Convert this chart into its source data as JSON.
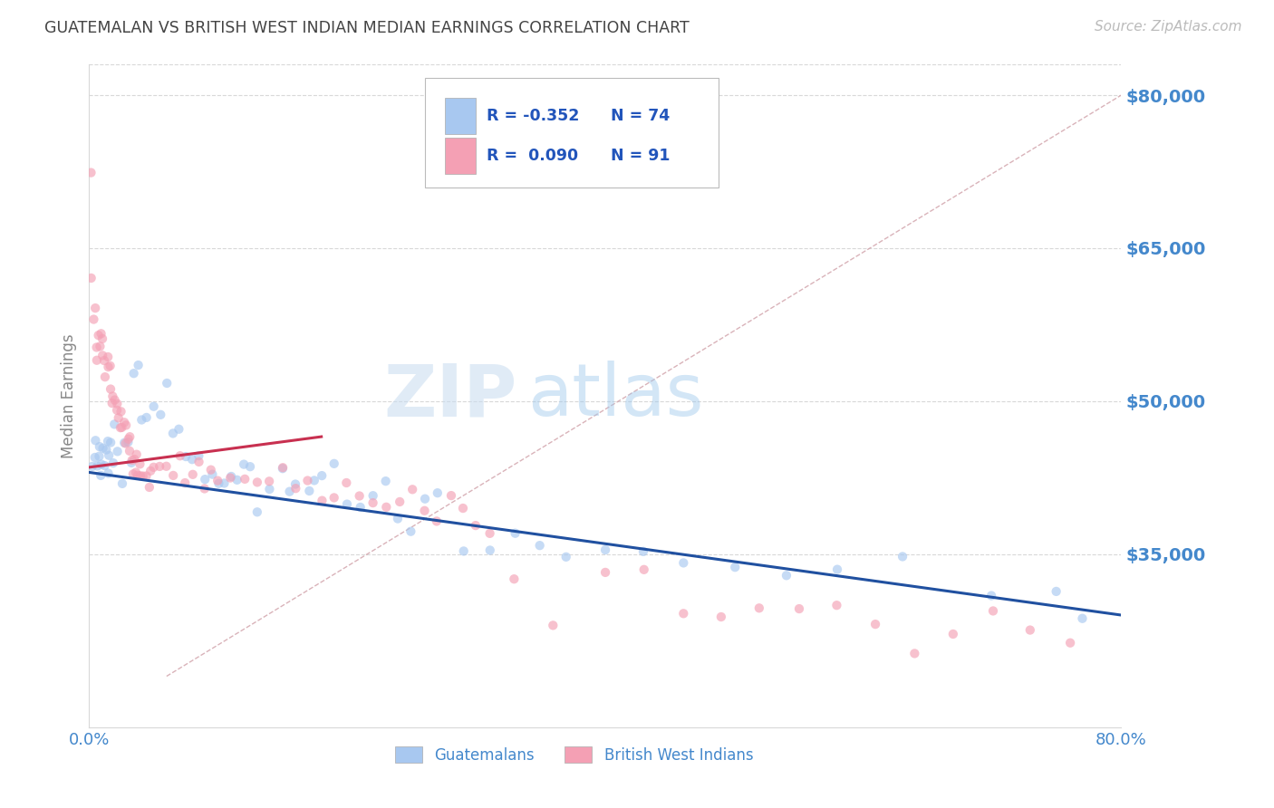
{
  "title": "GUATEMALAN VS BRITISH WEST INDIAN MEDIAN EARNINGS CORRELATION CHART",
  "source": "Source: ZipAtlas.com",
  "ylabel": "Median Earnings",
  "watermark_zip": "ZIP",
  "watermark_atlas": "atlas",
  "xlim": [
    0.0,
    0.8
  ],
  "ylim": [
    18000,
    83000
  ],
  "yticks": [
    35000,
    50000,
    65000,
    80000
  ],
  "ytick_labels": [
    "$35,000",
    "$50,000",
    "$65,000",
    "$80,000"
  ],
  "blue_color": "#A8C8F0",
  "pink_color": "#F4A0B4",
  "blue_line_color": "#2050A0",
  "pink_line_color": "#C83050",
  "dashed_line_color": "#D0A0A8",
  "title_color": "#444444",
  "ytick_color": "#4488CC",
  "background_color": "#FFFFFF",
  "grid_color": "#D8D8D8",
  "scatter_alpha": 0.65,
  "scatter_size": 55,
  "blue_scatter_x": [
    0.003,
    0.004,
    0.005,
    0.006,
    0.007,
    0.008,
    0.009,
    0.01,
    0.011,
    0.012,
    0.013,
    0.014,
    0.015,
    0.016,
    0.017,
    0.018,
    0.02,
    0.022,
    0.025,
    0.028,
    0.03,
    0.032,
    0.035,
    0.038,
    0.04,
    0.045,
    0.05,
    0.055,
    0.06,
    0.065,
    0.07,
    0.075,
    0.08,
    0.085,
    0.09,
    0.095,
    0.1,
    0.105,
    0.11,
    0.115,
    0.12,
    0.125,
    0.13,
    0.14,
    0.15,
    0.155,
    0.16,
    0.17,
    0.175,
    0.18,
    0.19,
    0.2,
    0.21,
    0.22,
    0.23,
    0.24,
    0.25,
    0.26,
    0.27,
    0.29,
    0.31,
    0.33,
    0.35,
    0.37,
    0.4,
    0.43,
    0.46,
    0.5,
    0.54,
    0.58,
    0.63,
    0.7,
    0.75,
    0.77
  ],
  "blue_scatter_y": [
    43000,
    44500,
    47000,
    44000,
    45000,
    46000,
    43500,
    44000,
    45500,
    43000,
    44500,
    46000,
    43000,
    44000,
    45000,
    43500,
    47000,
    44000,
    43000,
    45000,
    46500,
    44000,
    52000,
    53000,
    49000,
    48000,
    50500,
    49000,
    51000,
    47000,
    47000,
    44000,
    43500,
    44000,
    43500,
    43000,
    42000,
    43000,
    42500,
    42000,
    43000,
    42500,
    40000,
    42000,
    43000,
    42000,
    42500,
    41000,
    43000,
    42000,
    43000,
    41000,
    39500,
    40000,
    41000,
    39000,
    38000,
    39500,
    40000,
    36000,
    35500,
    36500,
    35000,
    35500,
    35000,
    34500,
    34000,
    34500,
    34000,
    34000,
    34000,
    32000,
    32500,
    29000
  ],
  "pink_scatter_x": [
    0.001,
    0.002,
    0.003,
    0.004,
    0.005,
    0.006,
    0.007,
    0.008,
    0.009,
    0.01,
    0.011,
    0.012,
    0.013,
    0.014,
    0.015,
    0.016,
    0.017,
    0.018,
    0.019,
    0.02,
    0.021,
    0.022,
    0.023,
    0.024,
    0.025,
    0.026,
    0.027,
    0.028,
    0.029,
    0.03,
    0.031,
    0.032,
    0.033,
    0.034,
    0.035,
    0.036,
    0.037,
    0.038,
    0.039,
    0.04,
    0.042,
    0.044,
    0.046,
    0.048,
    0.05,
    0.055,
    0.06,
    0.065,
    0.07,
    0.075,
    0.08,
    0.085,
    0.09,
    0.095,
    0.1,
    0.11,
    0.12,
    0.13,
    0.14,
    0.15,
    0.16,
    0.17,
    0.18,
    0.19,
    0.2,
    0.21,
    0.22,
    0.23,
    0.24,
    0.25,
    0.26,
    0.27,
    0.28,
    0.29,
    0.3,
    0.31,
    0.33,
    0.36,
    0.4,
    0.43,
    0.46,
    0.49,
    0.52,
    0.55,
    0.58,
    0.61,
    0.64,
    0.67,
    0.7,
    0.73,
    0.76
  ],
  "pink_scatter_y": [
    72000,
    63000,
    59000,
    58000,
    56000,
    55000,
    57000,
    55000,
    56500,
    54000,
    55000,
    54500,
    53000,
    53500,
    54000,
    53000,
    52000,
    50500,
    51500,
    49500,
    50500,
    50000,
    49000,
    49500,
    48500,
    48000,
    47500,
    47000,
    46500,
    46000,
    45500,
    45000,
    44500,
    44000,
    43500,
    44000,
    44000,
    43500,
    43000,
    42500,
    43000,
    43500,
    42500,
    43000,
    43000,
    42500,
    43000,
    43000,
    44000,
    43000,
    42500,
    43500,
    42500,
    43500,
    43000,
    43000,
    43000,
    42500,
    43000,
    43000,
    42500,
    42000,
    41000,
    40500,
    42500,
    41000,
    40000,
    40500,
    41000,
    40500,
    39500,
    39000,
    40000,
    38500,
    37000,
    36500,
    33500,
    27000,
    33000,
    32500,
    29000,
    30000,
    28500,
    30500,
    29500,
    28500,
    26000,
    28000,
    29000,
    28000,
    26000
  ],
  "blue_line_x": [
    0.0,
    0.8
  ],
  "blue_line_y": [
    43000,
    29000
  ],
  "pink_line_x": [
    0.0,
    0.18
  ],
  "pink_line_y": [
    43500,
    46500
  ],
  "dashed_line_x": [
    0.06,
    0.8
  ],
  "dashed_line_y": [
    23000,
    80000
  ]
}
